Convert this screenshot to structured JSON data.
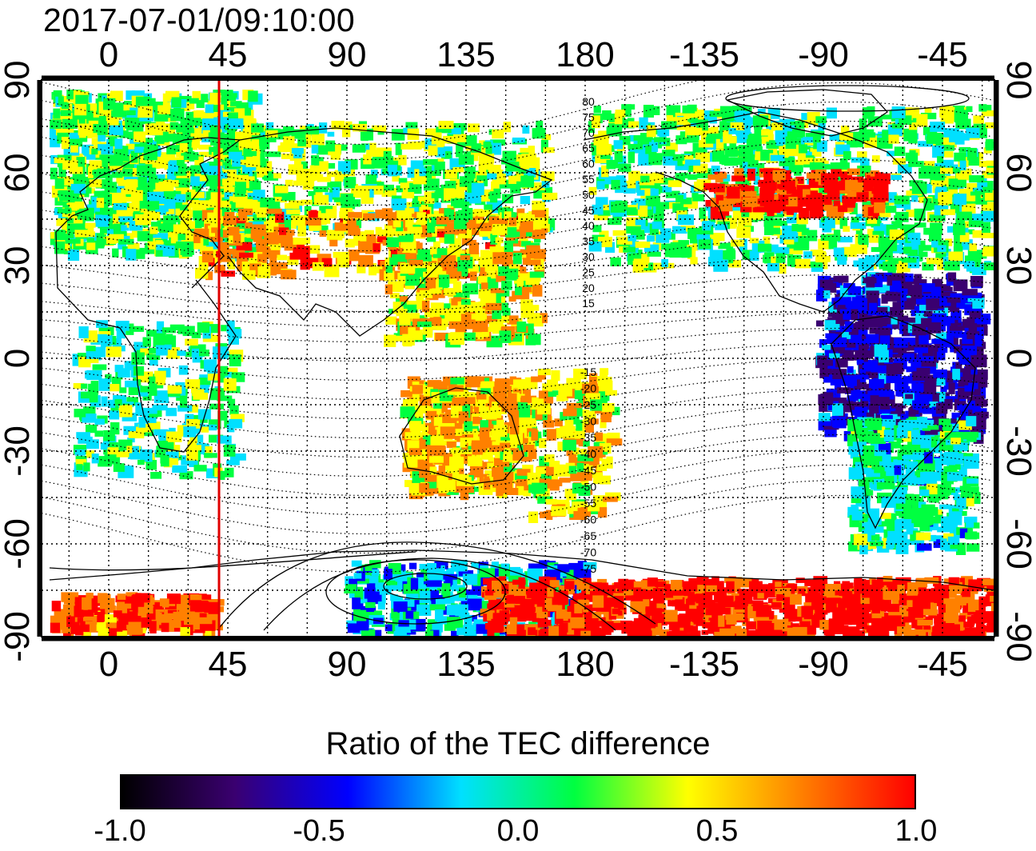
{
  "timestamp": "2017-07-01/09:10:00",
  "map": {
    "top_lon_ticks": [
      "0",
      "45",
      "90",
      "135",
      "180",
      "-135",
      "-90",
      "-45"
    ],
    "bottom_lon_ticks": [
      "0",
      "45",
      "90",
      "135",
      "180",
      "-135",
      "-90",
      "-45"
    ],
    "left_lat_ticks": [
      "90",
      "60",
      "30",
      "0",
      "-30",
      "-60",
      "-90"
    ],
    "right_lat_ticks": [
      "90",
      "60",
      "30",
      "0",
      "-30",
      "-60",
      "-90"
    ],
    "north_contour_labels": [
      "80",
      "75",
      "70",
      "65",
      "60",
      "55",
      "50",
      "45",
      "40",
      "35",
      "30",
      "25",
      "20",
      "15"
    ],
    "south_contour_labels": [
      "-15",
      "-20",
      "-25",
      "-30",
      "-35",
      "-40",
      "-45",
      "-50",
      "-55",
      "-60",
      "-65",
      "-70",
      "-75"
    ],
    "marker_longitude": 45,
    "marker_color": "#e00000"
  },
  "colorbar": {
    "title": "Ratio of the TEC difference",
    "ticks": [
      "-1.0",
      "-0.5",
      "0.0",
      "0.5",
      "1.0"
    ],
    "colors": [
      "#000000",
      "#3a0070",
      "#0000ff",
      "#00e0ff",
      "#00ff40",
      "#ffff00",
      "#ff8000",
      "#ff0000"
    ]
  }
}
